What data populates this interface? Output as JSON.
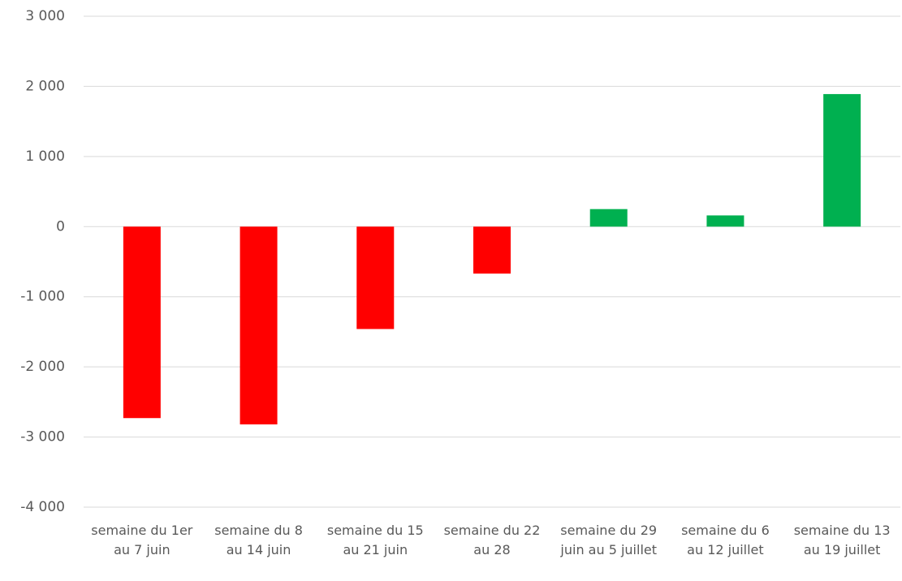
{
  "chart_data": {
    "type": "bar",
    "categories": [
      "semaine du 1er au 7 juin",
      "semaine du 8 au 14 juin",
      "semaine du 15 au 21 juin",
      "semaine du 22 au 28",
      "semaine du 29 juin au 5 juillet",
      "semaine du 6 au 12 juillet",
      "semaine du 13 au 19 juillet"
    ],
    "values": [
      -2730,
      -2820,
      -1460,
      -670,
      250,
      160,
      1890
    ],
    "colors": [
      "#ff0000",
      "#ff0000",
      "#ff0000",
      "#ff0000",
      "#00b050",
      "#00b050",
      "#00b050"
    ],
    "ylim": [
      -4000,
      3000
    ],
    "yticks": [
      {
        "value": -4000,
        "label": "-4 000"
      },
      {
        "value": -3000,
        "label": "-3 000"
      },
      {
        "value": -2000,
        "label": "-2 000"
      },
      {
        "value": -1000,
        "label": "-1 000"
      },
      0,
      {
        "value": 1000,
        "label": "1 000"
      },
      {
        "value": 2000,
        "label": "2 000"
      },
      {
        "value": 3000,
        "label": "3 000"
      }
    ],
    "grid": true
  }
}
